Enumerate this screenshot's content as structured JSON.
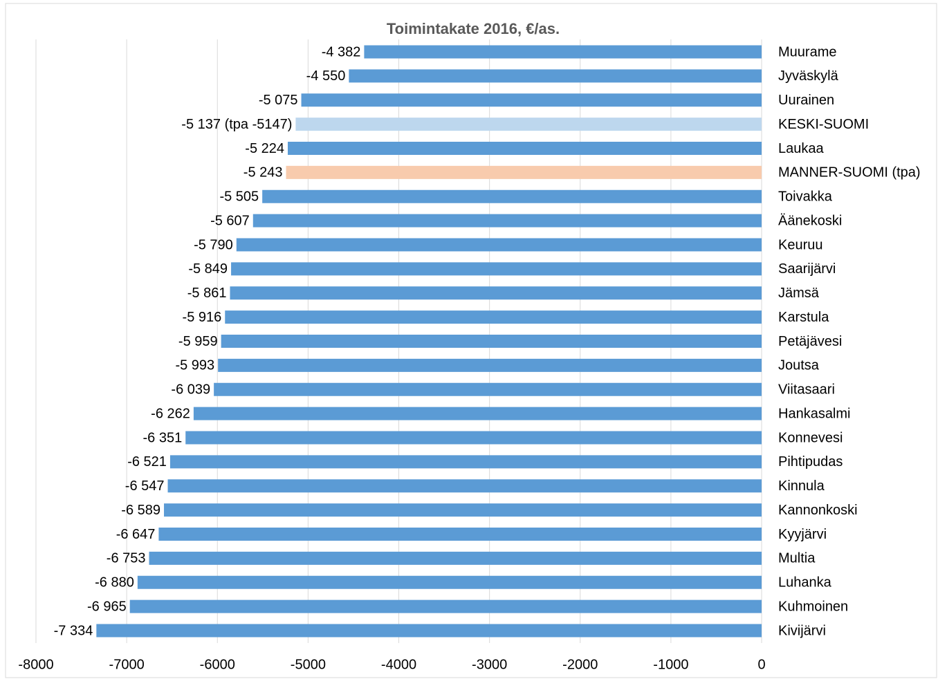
{
  "chart_data": {
    "type": "bar",
    "orientation": "horizontal",
    "title": "Toimintakate 2016, €/as.",
    "categories": [
      "Muurame",
      "Jyväskylä",
      "Uurainen",
      "KESKI-SUOMI",
      "Laukaa",
      "MANNER-SUOMI (tpa)",
      "Toivakka",
      "Äänekoski",
      "Keuruu",
      "Saarijärvi",
      "Jämsä",
      "Karstula",
      "Petäjävesi",
      "Joutsa",
      "Viitasaari",
      "Hankasalmi",
      "Konnevesi",
      "Pihtipudas",
      "Kinnula",
      "Kannonkoski",
      "Kyyjärvi",
      "Multia",
      "Luhanka",
      "Kuhmoinen",
      "Kivijärvi"
    ],
    "values": [
      -4382,
      -4550,
      -5075,
      -5137,
      -5224,
      -5243,
      -5505,
      -5607,
      -5790,
      -5849,
      -5861,
      -5916,
      -5959,
      -5993,
      -6039,
      -6262,
      -6351,
      -6521,
      -6547,
      -6589,
      -6647,
      -6753,
      -6880,
      -6965,
      -7334
    ],
    "value_labels": [
      "-4 382",
      "-4 550",
      "-5 075",
      "-5 137 (tpa -5147)",
      "-5 224",
      "-5 243",
      "-5 505",
      "-5 607",
      "-5 790",
      "-5 849",
      "-5 861",
      "-5 916",
      "-5 959",
      "-5 993",
      "-6 039",
      "-6 262",
      "-6 351",
      "-6 521",
      "-6 547",
      "-6 589",
      "-6 647",
      "-6 753",
      "-6 880",
      "-6 965",
      "-7 334"
    ],
    "colors": [
      "#5b9bd5",
      "#5b9bd5",
      "#5b9bd5",
      "#bdd7ee",
      "#5b9bd5",
      "#f8cbad",
      "#5b9bd5",
      "#5b9bd5",
      "#5b9bd5",
      "#5b9bd5",
      "#5b9bd5",
      "#5b9bd5",
      "#5b9bd5",
      "#5b9bd5",
      "#5b9bd5",
      "#5b9bd5",
      "#5b9bd5",
      "#5b9bd5",
      "#5b9bd5",
      "#5b9bd5",
      "#5b9bd5",
      "#5b9bd5",
      "#5b9bd5",
      "#5b9bd5",
      "#5b9bd5"
    ],
    "xlim": [
      -8000,
      0
    ],
    "xticks": [
      -8000,
      -7000,
      -6000,
      -5000,
      -4000,
      -3000,
      -2000,
      -1000,
      0
    ],
    "grid": true
  }
}
